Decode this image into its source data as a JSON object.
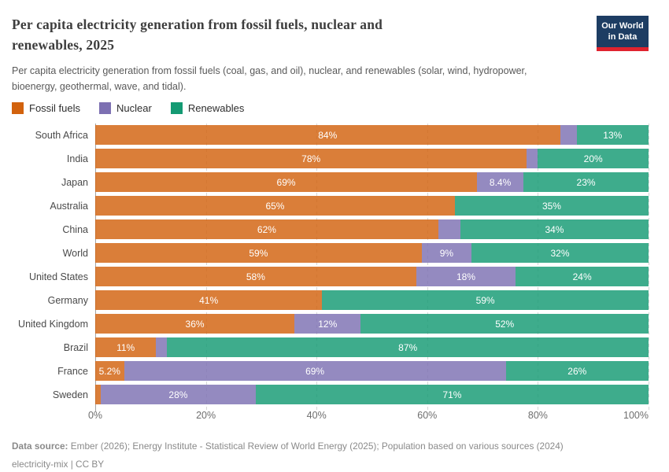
{
  "header": {
    "title_lines": [
      "Per capita electricity generation from fossil fuels, nuclear and",
      "renewables, 2025"
    ],
    "subtitle_lines": [
      "Per capita electricity generation from fossil fuels (coal, gas, and oil), nuclear, and renewables (solar, wind, hydropower,",
      "bioenergy, geothermal, wave, and tidal)."
    ],
    "logo": {
      "lines": [
        "Our World",
        "in Data"
      ],
      "bg_color": "#1d3d63",
      "accent_color": "#e0232e"
    }
  },
  "chart_data": {
    "type": "bar",
    "orientation": "horizontal",
    "stacked": true,
    "title": "Per capita electricity generation from fossil fuels, nuclear and renewables, 2025",
    "subtitle": "Per capita electricity generation from fossil fuels (coal, gas, and oil), nuclear, and renewables (solar, wind, hydropower, bioenergy, geothermal, wave, and tidal).",
    "categories": [
      "South Africa",
      "India",
      "Japan",
      "Australia",
      "China",
      "World",
      "United States",
      "Germany",
      "United Kingdom",
      "Brazil",
      "France",
      "Sweden"
    ],
    "series": [
      {
        "name": "Fossil fuels",
        "color": "#d2620d",
        "values": [
          84,
          78,
          69,
          65,
          62,
          59,
          58,
          41,
          36,
          11,
          5.2,
          1
        ],
        "labels": [
          "84%",
          "78%",
          "69%",
          "65%",
          "62%",
          "59%",
          "58%",
          "41%",
          "36%",
          "11%",
          "5.2%",
          ""
        ]
      },
      {
        "name": "Nuclear",
        "color": "#7d70b2",
        "values": [
          3,
          2,
          8.4,
          0,
          4,
          9,
          18,
          0,
          12,
          2,
          69,
          28
        ],
        "labels": [
          "",
          "",
          "8.4%",
          "",
          "",
          "9%",
          "18%",
          "",
          "12%",
          "",
          "69%",
          "28%"
        ]
      },
      {
        "name": "Renewables",
        "color": "#149a73",
        "values": [
          13,
          20,
          22.6,
          35,
          34,
          32,
          24,
          59,
          52,
          87,
          25.8,
          71
        ],
        "labels": [
          "13%",
          "20%",
          "23%",
          "35%",
          "34%",
          "32%",
          "24%",
          "59%",
          "52%",
          "87%",
          "26%",
          "71%"
        ]
      }
    ],
    "x_ticks": [
      "0%",
      "20%",
      "40%",
      "60%",
      "80%",
      "100%"
    ],
    "xlim": [
      0,
      100
    ],
    "grid": true,
    "legend_position": "top-left",
    "bar_opacity": 0.82
  },
  "footer": {
    "source_label": "Data source:",
    "source_text": "Ember (2026); Energy Institute - Statistical Review of World Energy (2025); Population based on various sources (2024)",
    "note": "electricity-mix | CC BY"
  }
}
